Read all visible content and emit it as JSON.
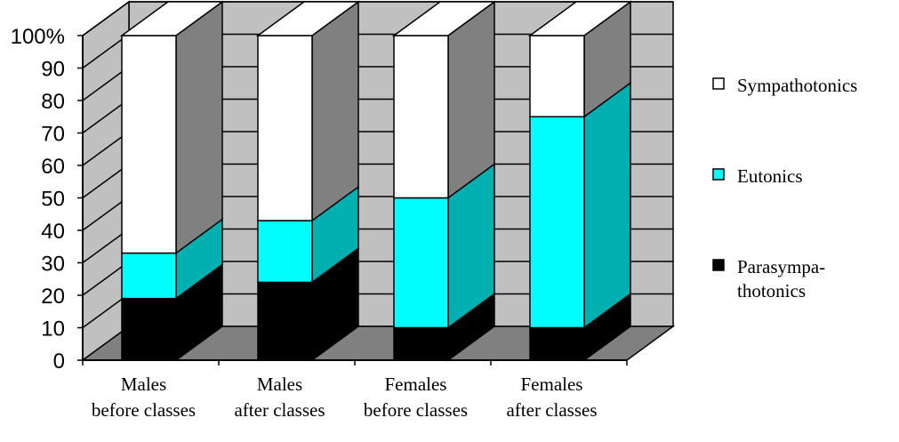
{
  "chart_data": {
    "type": "bar",
    "stacked": true,
    "percent": true,
    "three_d": true,
    "title": "",
    "xlabel": "",
    "ylabel": "",
    "ylim": [
      0,
      100
    ],
    "y_ticks": [
      "0",
      "10",
      "20",
      "30",
      "40",
      "50",
      "60",
      "70",
      "80",
      "90",
      "100%"
    ],
    "grid": true,
    "legend_position": "right",
    "categories": [
      [
        "Males",
        "before classes"
      ],
      [
        "Males",
        "after classes"
      ],
      [
        "Females",
        "before classes"
      ],
      [
        "Females",
        "after classes"
      ]
    ],
    "series": [
      {
        "name": "Parasympathotonics",
        "legend_lines": [
          "Parasympa-",
          "thotonics"
        ],
        "color": "#000000",
        "side_color": "#000000",
        "values": [
          19,
          24,
          10,
          10
        ]
      },
      {
        "name": "Eutonics",
        "legend_lines": [
          "Eutonics"
        ],
        "color": "#00ffff",
        "side_color": "#00b0b0",
        "values": [
          14,
          19,
          40,
          65
        ]
      },
      {
        "name": "Sympathotonics",
        "legend_lines": [
          "Sympathotonics"
        ],
        "color": "#ffffff",
        "side_color": "#808080",
        "values": [
          67,
          57,
          50,
          25
        ]
      }
    ],
    "legend_order": [
      2,
      1,
      0
    ]
  }
}
